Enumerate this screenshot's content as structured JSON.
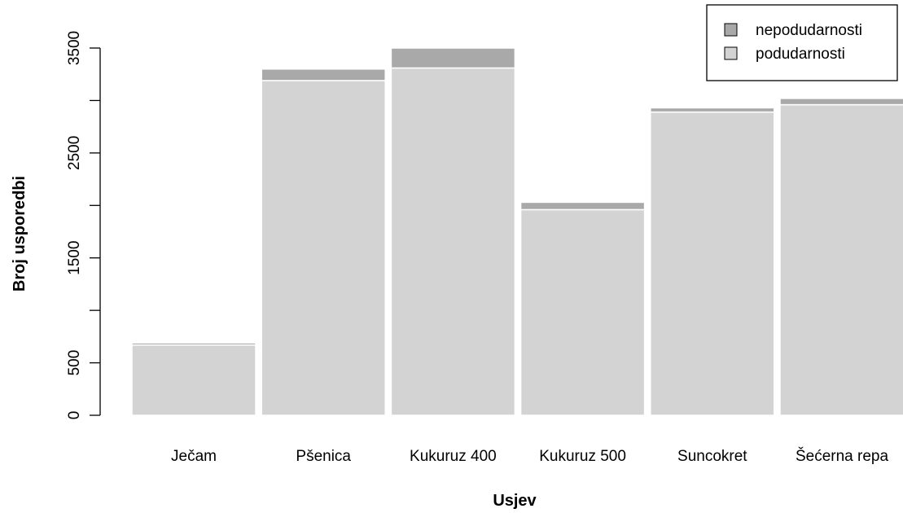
{
  "chart_data": {
    "type": "bar",
    "stacked": true,
    "categories": [
      "Ječam",
      "Pšenica",
      "Kukuruz 400",
      "Kukuruz 500",
      "Suncokret",
      "Šećerna repa"
    ],
    "series": [
      {
        "name": "podudarnosti",
        "values": [
          670,
          3190,
          3310,
          1960,
          2890,
          2960
        ],
        "color": "#d3d3d3"
      },
      {
        "name": "nepodudarnosti",
        "values": [
          20,
          110,
          190,
          70,
          40,
          60
        ],
        "color": "#a9a9a9"
      }
    ],
    "xlabel": "Usjev",
    "ylabel": "Broj usporedbi",
    "ylim": [
      0,
      3500
    ],
    "yticks": [
      0,
      500,
      1000,
      1500,
      2000,
      2500,
      3000,
      3500
    ],
    "ytick_labels": [
      "0",
      "500",
      "",
      "1500",
      "",
      "2500",
      "",
      "3500"
    ],
    "grid": false,
    "legend": {
      "position": "top-right",
      "order": [
        "nepodudarnosti",
        "podudarnosti"
      ]
    }
  }
}
